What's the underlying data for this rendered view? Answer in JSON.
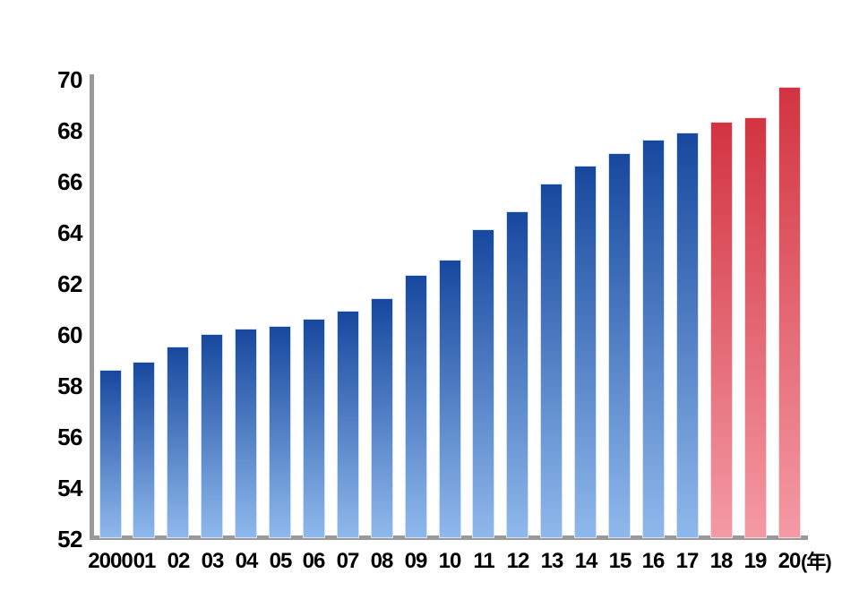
{
  "chart_data": {
    "type": "bar",
    "title": "",
    "x_unit_label": "(年)",
    "categories": [
      "2000",
      "01",
      "02",
      "03",
      "04",
      "05",
      "06",
      "07",
      "08",
      "09",
      "10",
      "11",
      "12",
      "13",
      "14",
      "15",
      "16",
      "17",
      "18",
      "19",
      "20"
    ],
    "values": [
      58.6,
      58.9,
      59.5,
      60.0,
      60.2,
      60.3,
      60.6,
      60.9,
      61.4,
      62.3,
      62.9,
      64.1,
      64.8,
      65.9,
      66.6,
      67.1,
      67.6,
      67.9,
      68.3,
      68.5,
      69.7
    ],
    "highlight_from_index": 18,
    "y_axis": {
      "min": 52,
      "max": 70,
      "tick_step": 2,
      "ticks": [
        70,
        68,
        66,
        64,
        62,
        60,
        58,
        56,
        54,
        52
      ]
    },
    "grid": false,
    "legend": "none",
    "colors": {
      "bar_top": "#17489e",
      "bar_bottom": "#8fb9ec",
      "bar_border": "#d3e1f5",
      "highlight_top": "#d23440",
      "highlight_bottom": "#f49aa5",
      "highlight_border": "#f8d6db",
      "axis": "#999999",
      "text": "#000000",
      "background": "#ffffff"
    }
  }
}
